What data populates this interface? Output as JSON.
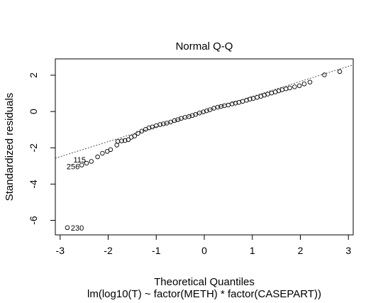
{
  "chart_data": {
    "type": "scatter",
    "title": "Normal Q-Q",
    "xlabel": "Theoretical Quantiles",
    "ylabel": "Standardized residuals",
    "subtitle": "lm(log10(T) ~ factor(METH) * factor(CASEPART))",
    "xlim": [
      -3.1,
      3.1
    ],
    "ylim": [
      -6.8,
      2.9
    ],
    "xticks": [
      -3,
      -2,
      -1,
      0,
      1,
      2,
      3
    ],
    "yticks": [
      -6,
      -4,
      -2,
      0,
      2
    ],
    "grid": false,
    "reference_line": {
      "slope": 0.83,
      "intercept": 0.0,
      "style": "dotted"
    },
    "points": [
      [
        -2.85,
        -6.4
      ],
      [
        -2.55,
        -2.95
      ],
      [
        -2.45,
        -2.85
      ],
      [
        -2.35,
        -2.75
      ],
      [
        -2.22,
        -2.5
      ],
      [
        -2.12,
        -2.3
      ],
      [
        -2.02,
        -2.2
      ],
      [
        -1.95,
        -2.1
      ],
      [
        -1.82,
        -1.85
      ],
      [
        -1.8,
        -1.65
      ],
      [
        -1.72,
        -1.62
      ],
      [
        -1.65,
        -1.6
      ],
      [
        -1.58,
        -1.55
      ],
      [
        -1.52,
        -1.42
      ],
      [
        -1.45,
        -1.35
      ],
      [
        -1.38,
        -1.2
      ],
      [
        -1.3,
        -1.08
      ],
      [
        -1.22,
        -0.98
      ],
      [
        -1.15,
        -0.9
      ],
      [
        -1.08,
        -0.85
      ],
      [
        -1.0,
        -0.78
      ],
      [
        -0.92,
        -0.72
      ],
      [
        -0.85,
        -0.68
      ],
      [
        -0.78,
        -0.64
      ],
      [
        -0.7,
        -0.58
      ],
      [
        -0.62,
        -0.5
      ],
      [
        -0.55,
        -0.45
      ],
      [
        -0.48,
        -0.38
      ],
      [
        -0.4,
        -0.32
      ],
      [
        -0.32,
        -0.28
      ],
      [
        -0.25,
        -0.22
      ],
      [
        -0.18,
        -0.16
      ],
      [
        -0.1,
        -0.08
      ],
      [
        -0.02,
        -0.02
      ],
      [
        0.05,
        0.04
      ],
      [
        0.12,
        0.1
      ],
      [
        0.2,
        0.18
      ],
      [
        0.28,
        0.24
      ],
      [
        0.35,
        0.28
      ],
      [
        0.42,
        0.32
      ],
      [
        0.5,
        0.36
      ],
      [
        0.58,
        0.42
      ],
      [
        0.65,
        0.46
      ],
      [
        0.72,
        0.5
      ],
      [
        0.8,
        0.56
      ],
      [
        0.88,
        0.62
      ],
      [
        0.95,
        0.68
      ],
      [
        1.02,
        0.72
      ],
      [
        1.1,
        0.78
      ],
      [
        1.18,
        0.84
      ],
      [
        1.25,
        0.9
      ],
      [
        1.32,
        0.96
      ],
      [
        1.4,
        1.02
      ],
      [
        1.48,
        1.08
      ],
      [
        1.55,
        1.14
      ],
      [
        1.62,
        1.2
      ],
      [
        1.7,
        1.25
      ],
      [
        1.78,
        1.3
      ],
      [
        1.88,
        1.36
      ],
      [
        1.98,
        1.42
      ],
      [
        2.08,
        1.52
      ],
      [
        2.2,
        1.62
      ],
      [
        2.5,
        2.02
      ],
      [
        2.82,
        2.2
      ]
    ],
    "point_labels": [
      {
        "text": "230",
        "x": -2.85,
        "y": -6.4
      },
      {
        "text": "256",
        "x": -2.55,
        "y": -2.95
      },
      {
        "text": "115",
        "x": -2.45,
        "y": -2.85
      }
    ]
  }
}
